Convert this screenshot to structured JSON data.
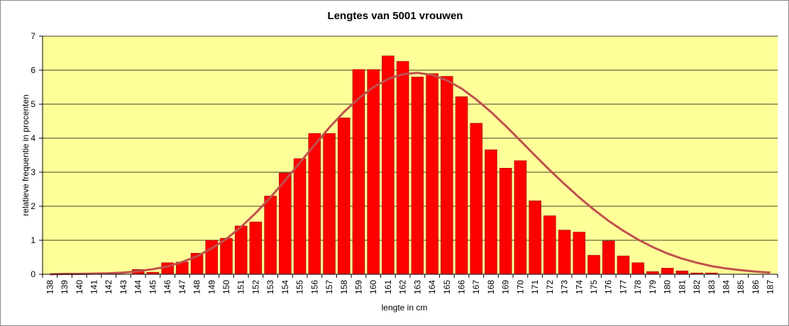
{
  "chart_data": {
    "type": "bar",
    "title": "Lengtes van 5001 vrouwen",
    "xlabel": "lengte in cm",
    "ylabel": "relatieve frequentie in procenten",
    "ylim": [
      0,
      7
    ],
    "yticks": [
      "0",
      "1",
      "2",
      "3",
      "4",
      "5",
      "6",
      "7"
    ],
    "grid": true,
    "legend": "none",
    "colors": {
      "plot_background": "#ffff99",
      "bar_fill": "#ff0000",
      "bar_stroke": "#800000",
      "curve": "#c0504d",
      "gridline": "#000000"
    },
    "categories": [
      "138",
      "139",
      "140",
      "141",
      "142",
      "143",
      "144",
      "145",
      "146",
      "147",
      "148",
      "149",
      "150",
      "151",
      "152",
      "153",
      "154",
      "155",
      "156",
      "157",
      "158",
      "159",
      "160",
      "161",
      "162",
      "163",
      "164",
      "165",
      "166",
      "167",
      "168",
      "169",
      "170",
      "171",
      "172",
      "173",
      "174",
      "175",
      "176",
      "177",
      "178",
      "179",
      "180",
      "181",
      "182",
      "183",
      "184",
      "185",
      "186",
      "187"
    ],
    "series": [
      {
        "type": "bar",
        "values": [
          0,
          0,
          0,
          0.02,
          0.02,
          0,
          0.14,
          0.06,
          0.34,
          0.36,
          0.62,
          1.0,
          1.06,
          1.42,
          1.54,
          2.3,
          2.98,
          3.4,
          4.14,
          4.14,
          4.6,
          6.02,
          6.02,
          6.42,
          6.26,
          5.8,
          5.9,
          5.82,
          5.22,
          4.44,
          3.66,
          3.12,
          3.34,
          2.16,
          1.72,
          1.3,
          1.24,
          0.56,
          0.98,
          0.54,
          0.34,
          0.08,
          0.18,
          0.1,
          0.04,
          0.04,
          0,
          0,
          0,
          0
        ]
      },
      {
        "type": "line",
        "values": [
          0.0,
          0.01,
          0.01,
          0.02,
          0.03,
          0.05,
          0.09,
          0.15,
          0.23,
          0.36,
          0.53,
          0.76,
          1.04,
          1.39,
          1.8,
          2.26,
          2.76,
          3.28,
          3.8,
          4.31,
          4.77,
          5.17,
          5.5,
          5.74,
          5.88,
          5.92,
          5.86,
          5.7,
          5.46,
          5.14,
          4.77,
          4.36,
          3.93,
          3.49,
          3.06,
          2.65,
          2.26,
          1.9,
          1.57,
          1.28,
          1.02,
          0.8,
          0.61,
          0.46,
          0.34,
          0.24,
          0.17,
          0.12,
          0.08,
          0.05
        ]
      }
    ]
  }
}
